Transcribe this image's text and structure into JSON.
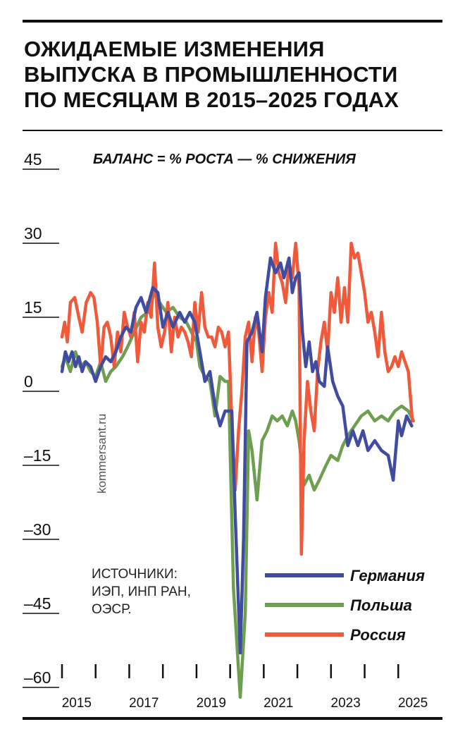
{
  "title_lines": [
    "ОЖИДАЕМЫЕ ИЗМЕНЕНИЯ",
    "ВЫПУСКА В ПРОМЫШЛЕННОСТИ",
    "ПО МЕСЯЦАМ В 2015–2025 ГОДАХ"
  ],
  "source_lines": [
    "ИСТОЧНИКИ:",
    "ИЭП, ИНП РАН,",
    "ОЭСР."
  ],
  "watermark": "kommersant.ru",
  "chart_data": {
    "type": "line",
    "subtitle": "БАЛАНС = % РОСТА — % СНИЖЕНИЯ",
    "ylim": [
      -60,
      45
    ],
    "y_ticks": [
      45,
      30,
      15,
      0,
      -15,
      -30,
      -45,
      -60
    ],
    "y_tick_labels": [
      "45",
      "30",
      "15",
      "0",
      "–15",
      "–30",
      "–45",
      "–60"
    ],
    "xlim": [
      2015,
      2026
    ],
    "x_ticks": [
      2015,
      2016,
      2017,
      2018,
      2019,
      2020,
      2021,
      2022,
      2023,
      2024,
      2025
    ],
    "x_tick_labels": [
      "2015",
      "2017",
      "2019",
      "2021",
      "2023",
      "2025"
    ],
    "x_tick_label_years": [
      2015.5,
      2017.5,
      2019.5,
      2021.5,
      2023.5,
      2025.5
    ],
    "grid": false,
    "legend_position": "bottom-right",
    "series": [
      {
        "name": "Германия",
        "color": "#3f4ca0",
        "points": [
          [
            2015.0,
            4
          ],
          [
            2015.1,
            8
          ],
          [
            2015.2,
            6
          ],
          [
            2015.3,
            8
          ],
          [
            2015.4,
            5
          ],
          [
            2015.5,
            7
          ],
          [
            2015.6,
            4
          ],
          [
            2015.7,
            6
          ],
          [
            2015.85,
            5
          ],
          [
            2016.0,
            2
          ],
          [
            2016.15,
            5
          ],
          [
            2016.3,
            7
          ],
          [
            2016.45,
            6
          ],
          [
            2016.6,
            8
          ],
          [
            2016.75,
            11
          ],
          [
            2016.9,
            13
          ],
          [
            2017.05,
            12
          ],
          [
            2017.2,
            17
          ],
          [
            2017.35,
            19
          ],
          [
            2017.5,
            16
          ],
          [
            2017.7,
            21
          ],
          [
            2017.85,
            20
          ],
          [
            2018.0,
            13
          ],
          [
            2018.15,
            16
          ],
          [
            2018.3,
            13
          ],
          [
            2018.5,
            16
          ],
          [
            2018.65,
            14
          ],
          [
            2018.8,
            16
          ],
          [
            2018.95,
            14
          ],
          [
            2019.1,
            8
          ],
          [
            2019.25,
            2
          ],
          [
            2019.4,
            4
          ],
          [
            2019.55,
            -3
          ],
          [
            2019.7,
            -7
          ],
          [
            2019.85,
            -4
          ],
          [
            2020.05,
            -4
          ],
          [
            2020.15,
            -25
          ],
          [
            2020.3,
            -53
          ],
          [
            2020.4,
            -30
          ],
          [
            2020.5,
            10
          ],
          [
            2020.65,
            12
          ],
          [
            2020.8,
            16
          ],
          [
            2020.95,
            8
          ],
          [
            2021.05,
            19
          ],
          [
            2021.2,
            27
          ],
          [
            2021.35,
            24
          ],
          [
            2021.5,
            26
          ],
          [
            2021.6,
            23
          ],
          [
            2021.75,
            27
          ],
          [
            2021.85,
            20
          ],
          [
            2021.95,
            23
          ],
          [
            2022.05,
            24
          ],
          [
            2022.15,
            12
          ],
          [
            2022.25,
            5
          ],
          [
            2022.35,
            10
          ],
          [
            2022.45,
            4
          ],
          [
            2022.55,
            6
          ],
          [
            2022.65,
            2
          ],
          [
            2022.8,
            1
          ],
          [
            2022.9,
            9
          ],
          [
            2023.05,
            2
          ],
          [
            2023.2,
            -1
          ],
          [
            2023.35,
            -3
          ],
          [
            2023.5,
            -11
          ],
          [
            2023.65,
            -8
          ],
          [
            2023.8,
            -11
          ],
          [
            2023.95,
            -8
          ],
          [
            2024.1,
            -12
          ],
          [
            2024.3,
            -10
          ],
          [
            2024.5,
            -12
          ],
          [
            2024.7,
            -13
          ],
          [
            2024.85,
            -18
          ],
          [
            2025.0,
            -6
          ],
          [
            2025.1,
            -9
          ],
          [
            2025.25,
            -5
          ],
          [
            2025.4,
            -7
          ]
        ]
      },
      {
        "name": "Польша",
        "color": "#6e9e50",
        "points": [
          [
            2015.0,
            5
          ],
          [
            2015.1,
            7
          ],
          [
            2015.25,
            4
          ],
          [
            2015.4,
            8
          ],
          [
            2015.55,
            5
          ],
          [
            2015.7,
            6
          ],
          [
            2015.85,
            4
          ],
          [
            2016.0,
            3
          ],
          [
            2016.15,
            6
          ],
          [
            2016.3,
            2
          ],
          [
            2016.45,
            4
          ],
          [
            2016.6,
            5
          ],
          [
            2016.8,
            7
          ],
          [
            2016.95,
            9
          ],
          [
            2017.15,
            12
          ],
          [
            2017.35,
            15
          ],
          [
            2017.55,
            16
          ],
          [
            2017.75,
            20
          ],
          [
            2017.9,
            18
          ],
          [
            2018.1,
            16
          ],
          [
            2018.3,
            17
          ],
          [
            2018.5,
            15
          ],
          [
            2018.7,
            14
          ],
          [
            2018.85,
            12
          ],
          [
            2019.0,
            10
          ],
          [
            2019.1,
            5
          ],
          [
            2019.25,
            3
          ],
          [
            2019.4,
            2
          ],
          [
            2019.55,
            -5
          ],
          [
            2019.7,
            3
          ],
          [
            2019.85,
            2
          ],
          [
            2019.95,
            2
          ],
          [
            2020.1,
            -40
          ],
          [
            2020.3,
            -62
          ],
          [
            2020.45,
            -45
          ],
          [
            2020.55,
            -8
          ],
          [
            2020.65,
            -12
          ],
          [
            2020.8,
            -22
          ],
          [
            2020.95,
            -10
          ],
          [
            2021.1,
            -8
          ],
          [
            2021.25,
            -5
          ],
          [
            2021.4,
            -6
          ],
          [
            2021.55,
            -5
          ],
          [
            2021.7,
            -7
          ],
          [
            2021.85,
            -4
          ],
          [
            2021.95,
            -6
          ],
          [
            2022.05,
            -10
          ],
          [
            2022.2,
            -19
          ],
          [
            2022.35,
            -17
          ],
          [
            2022.5,
            -20
          ],
          [
            2022.65,
            -18
          ],
          [
            2022.85,
            -15
          ],
          [
            2023.0,
            -13
          ],
          [
            2023.2,
            -14
          ],
          [
            2023.35,
            -11
          ],
          [
            2023.5,
            -9
          ],
          [
            2023.7,
            -7
          ],
          [
            2023.9,
            -5
          ],
          [
            2024.1,
            -4
          ],
          [
            2024.3,
            -6
          ],
          [
            2024.5,
            -5
          ],
          [
            2024.7,
            -6
          ],
          [
            2024.9,
            -4
          ],
          [
            2025.1,
            -3
          ],
          [
            2025.3,
            -4
          ],
          [
            2025.45,
            -6
          ]
        ]
      },
      {
        "name": "Россия",
        "color": "#f05a3a",
        "points": [
          [
            2015.0,
            11
          ],
          [
            2015.08,
            14
          ],
          [
            2015.16,
            10
          ],
          [
            2015.25,
            18
          ],
          [
            2015.38,
            19
          ],
          [
            2015.5,
            15
          ],
          [
            2015.6,
            12
          ],
          [
            2015.72,
            18
          ],
          [
            2015.85,
            20
          ],
          [
            2015.95,
            19
          ],
          [
            2016.05,
            14
          ],
          [
            2016.15,
            5
          ],
          [
            2016.25,
            13
          ],
          [
            2016.35,
            14
          ],
          [
            2016.45,
            11
          ],
          [
            2016.55,
            5
          ],
          [
            2016.65,
            12
          ],
          [
            2016.75,
            8
          ],
          [
            2016.85,
            16
          ],
          [
            2016.95,
            13
          ],
          [
            2017.05,
            11
          ],
          [
            2017.15,
            16
          ],
          [
            2017.25,
            6
          ],
          [
            2017.35,
            14
          ],
          [
            2017.45,
            12
          ],
          [
            2017.55,
            18
          ],
          [
            2017.65,
            15
          ],
          [
            2017.75,
            26
          ],
          [
            2017.85,
            13
          ],
          [
            2017.95,
            9
          ],
          [
            2018.05,
            12
          ],
          [
            2018.15,
            18
          ],
          [
            2018.25,
            8
          ],
          [
            2018.35,
            15
          ],
          [
            2018.45,
            11
          ],
          [
            2018.55,
            13
          ],
          [
            2018.65,
            12
          ],
          [
            2018.75,
            10
          ],
          [
            2018.85,
            7
          ],
          [
            2018.95,
            18
          ],
          [
            2019.05,
            12
          ],
          [
            2019.15,
            20
          ],
          [
            2019.25,
            13
          ],
          [
            2019.35,
            11
          ],
          [
            2019.45,
            11
          ],
          [
            2019.55,
            9
          ],
          [
            2019.65,
            13
          ],
          [
            2019.75,
            12
          ],
          [
            2019.85,
            9
          ],
          [
            2019.95,
            12
          ],
          [
            2020.05,
            -6
          ],
          [
            2020.15,
            -20
          ],
          [
            2020.25,
            -8
          ],
          [
            2020.35,
            0
          ],
          [
            2020.45,
            11
          ],
          [
            2020.55,
            14
          ],
          [
            2020.65,
            6
          ],
          [
            2020.75,
            15
          ],
          [
            2020.85,
            12
          ],
          [
            2020.95,
            4
          ],
          [
            2021.05,
            15
          ],
          [
            2021.15,
            20
          ],
          [
            2021.25,
            16
          ],
          [
            2021.35,
            30
          ],
          [
            2021.45,
            24
          ],
          [
            2021.55,
            22
          ],
          [
            2021.65,
            18
          ],
          [
            2021.75,
            26
          ],
          [
            2021.85,
            23
          ],
          [
            2021.95,
            30
          ],
          [
            2022.05,
            21
          ],
          [
            2022.12,
            -33
          ],
          [
            2022.2,
            -10
          ],
          [
            2022.3,
            2
          ],
          [
            2022.4,
            -4
          ],
          [
            2022.5,
            -8
          ],
          [
            2022.6,
            4
          ],
          [
            2022.7,
            10
          ],
          [
            2022.8,
            14
          ],
          [
            2022.9,
            8
          ],
          [
            2023.0,
            20
          ],
          [
            2023.1,
            16
          ],
          [
            2023.2,
            23
          ],
          [
            2023.3,
            14
          ],
          [
            2023.4,
            21
          ],
          [
            2023.5,
            14
          ],
          [
            2023.6,
            30
          ],
          [
            2023.7,
            27
          ],
          [
            2023.8,
            28
          ],
          [
            2023.9,
            24
          ],
          [
            2024.0,
            20
          ],
          [
            2024.1,
            14
          ],
          [
            2024.2,
            16
          ],
          [
            2024.3,
            12
          ],
          [
            2024.4,
            7
          ],
          [
            2024.5,
            16
          ],
          [
            2024.6,
            8
          ],
          [
            2024.7,
            4
          ],
          [
            2024.8,
            5
          ],
          [
            2024.9,
            7
          ],
          [
            2025.0,
            5
          ],
          [
            2025.1,
            8
          ],
          [
            2025.2,
            6
          ],
          [
            2025.3,
            4
          ],
          [
            2025.42,
            -6
          ]
        ]
      }
    ]
  }
}
